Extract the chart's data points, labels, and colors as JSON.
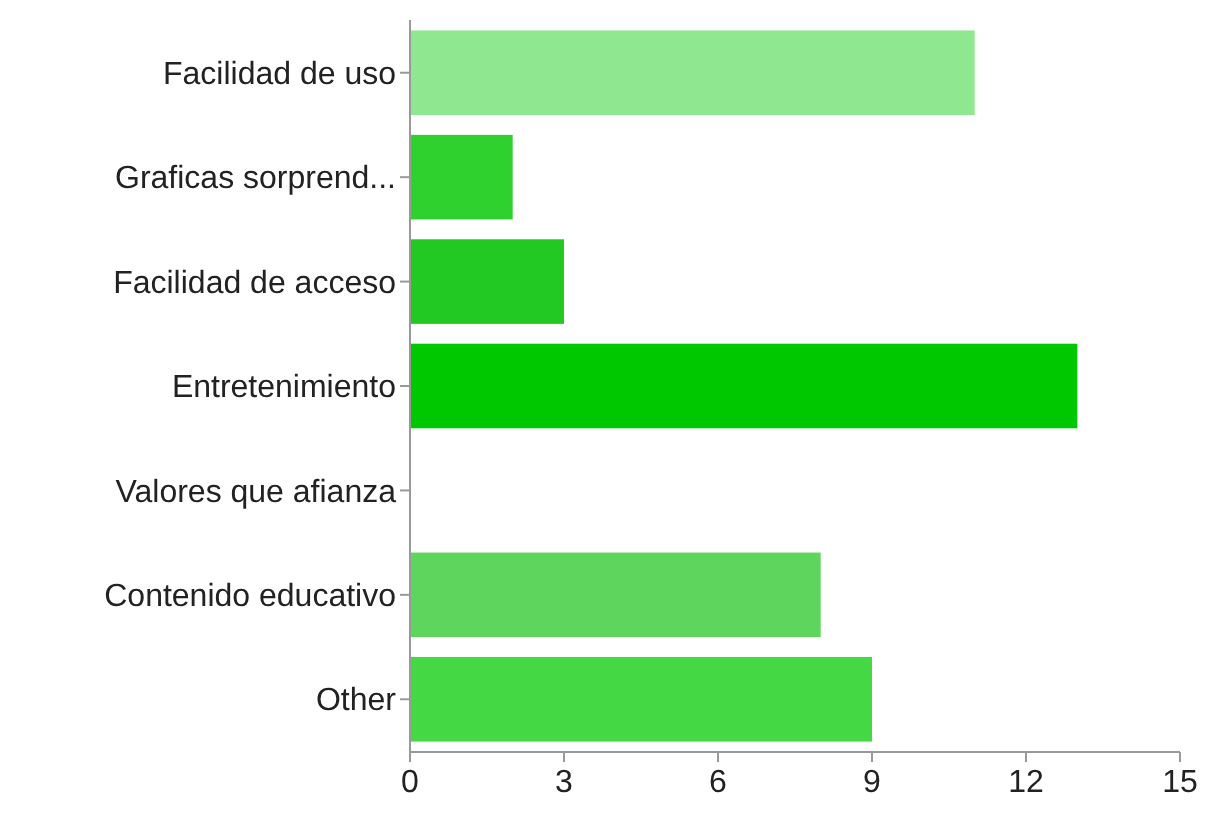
{
  "chart_data": {
    "type": "bar",
    "orientation": "horizontal",
    "categories": [
      "Facilidad de uso",
      "Graficas sorprend...",
      "Facilidad de acceso",
      "Entretenimiento",
      "Valores que afianza",
      "Contenido educativo",
      "Other"
    ],
    "values": [
      11,
      2,
      3,
      13,
      0,
      8,
      9
    ],
    "colors": [
      "#8fe88f",
      "#2ed12e",
      "#22c922",
      "#00c800",
      "#33cc33",
      "#5ed65e",
      "#44d844"
    ],
    "xlim": [
      0,
      15
    ],
    "xticks": [
      0,
      3,
      6,
      9,
      12,
      15
    ],
    "grid": false
  }
}
